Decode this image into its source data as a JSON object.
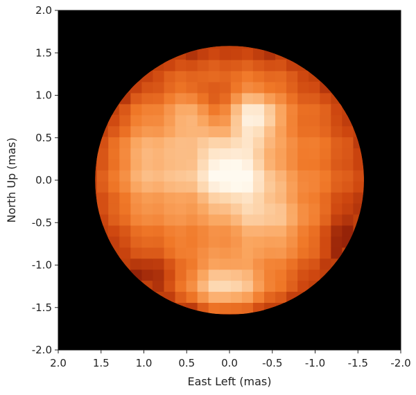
{
  "chart_data": {
    "type": "heatmap",
    "title": "",
    "xlabel": "East Left (mas)",
    "ylabel": "North Up (mas)",
    "xlim": [
      2.0,
      -2.0
    ],
    "ylim": [
      -2.0,
      2.0
    ],
    "xticks": [
      "2.0",
      "1.5",
      "1.0",
      "0.5",
      "0.0",
      "-0.5",
      "-1.0",
      "-1.5",
      "-2.0"
    ],
    "yticks": [
      "2.0",
      "1.5",
      "1.0",
      "0.5",
      "0.0",
      "-0.5",
      "-1.0",
      "-1.5",
      "-2.0"
    ],
    "disk": {
      "center_x": 0.0,
      "center_y": 0.0,
      "radius": 1.57
    },
    "background": "black",
    "colormap": "hot (black-red-orange-white)",
    "colors": {
      "background": "#000000",
      "limb": "#c2410c",
      "mid": "#f97316",
      "bright": "#fff7ee"
    },
    "bright_features": [
      {
        "x": 0.0,
        "y": 0.1,
        "intensity": 1.0,
        "sx": 0.32,
        "sy": 0.28
      },
      {
        "x": -0.3,
        "y": 0.75,
        "intensity": 0.9,
        "sx": 0.2,
        "sy": 0.2
      },
      {
        "x": 0.35,
        "y": 0.75,
        "intensity": 0.55,
        "sx": 0.2,
        "sy": 0.2
      },
      {
        "x": 0.05,
        "y": -1.25,
        "intensity": 0.85,
        "sx": 0.32,
        "sy": 0.2
      },
      {
        "x": 0.95,
        "y": 0.2,
        "intensity": 0.5,
        "sx": 0.3,
        "sy": 0.4
      },
      {
        "x": -0.45,
        "y": -0.45,
        "intensity": 0.45,
        "sx": 0.3,
        "sy": 0.3
      }
    ],
    "dark_features": [
      {
        "x": 0.2,
        "y": 0.85,
        "intensity": 0.7,
        "sx": 0.14,
        "sy": 0.2
      },
      {
        "x": -1.35,
        "y": -0.7,
        "intensity": 0.5,
        "sx": 0.2,
        "sy": 0.3
      },
      {
        "x": 0.9,
        "y": -1.1,
        "intensity": 0.4,
        "sx": 0.25,
        "sy": 0.2
      }
    ]
  }
}
